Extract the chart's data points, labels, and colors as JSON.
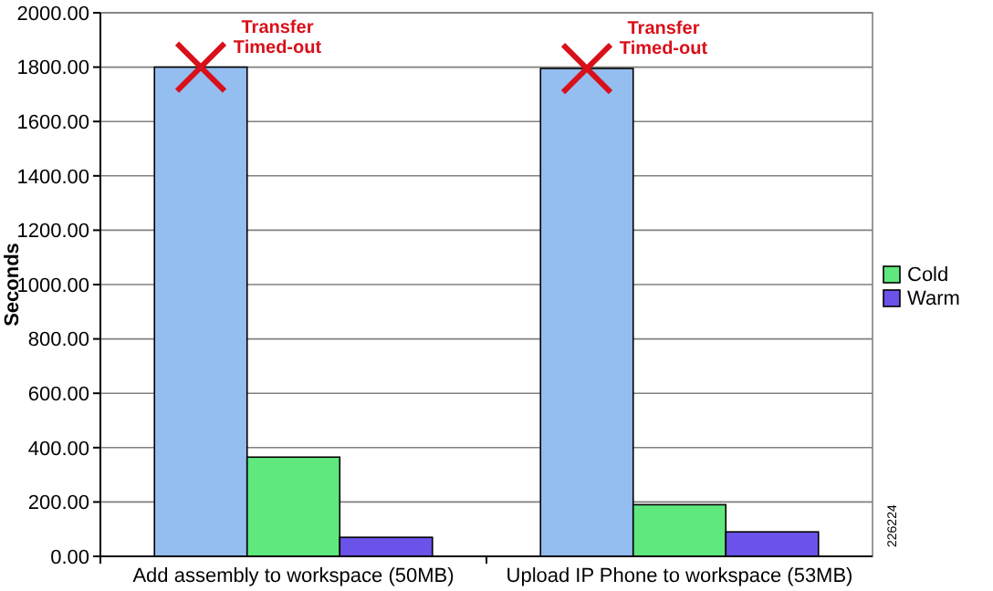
{
  "chart_data": {
    "type": "bar",
    "ylabel": "Seconds",
    "categories": [
      "Add assembly to workspace (50MB)",
      "Upload IP Phone to workspace (53MB)"
    ],
    "series": [
      {
        "color": "#94bdf0",
        "values": [
          1800,
          1795
        ]
      },
      {
        "name": "Cold",
        "color": "#5fe87e",
        "values": [
          365,
          190
        ]
      },
      {
        "name": "Warm",
        "color": "#6b52e8",
        "values": [
          70,
          90
        ]
      }
    ],
    "ylim": [
      0,
      2000
    ],
    "yticks": [
      {
        "value": 0,
        "label": "0.00"
      },
      {
        "value": 200,
        "label": "200.00"
      },
      {
        "value": 400,
        "label": "400.00"
      },
      {
        "value": 600,
        "label": "600.00"
      },
      {
        "value": 800,
        "label": "800.00"
      },
      {
        "value": 1000,
        "label": "1000.00"
      },
      {
        "value": 1200,
        "label": "1200.00"
      },
      {
        "value": 1400,
        "label": "1400.00"
      },
      {
        "value": 1600,
        "label": "1600.00"
      },
      {
        "value": 1800,
        "label": "1800.00"
      },
      {
        "value": 2000,
        "label": "2000.00"
      }
    ],
    "grid": "y",
    "legend": "right",
    "annotations": [
      "Transfer Timed-out",
      "Transfer Timed-out",
      "226224"
    ]
  }
}
